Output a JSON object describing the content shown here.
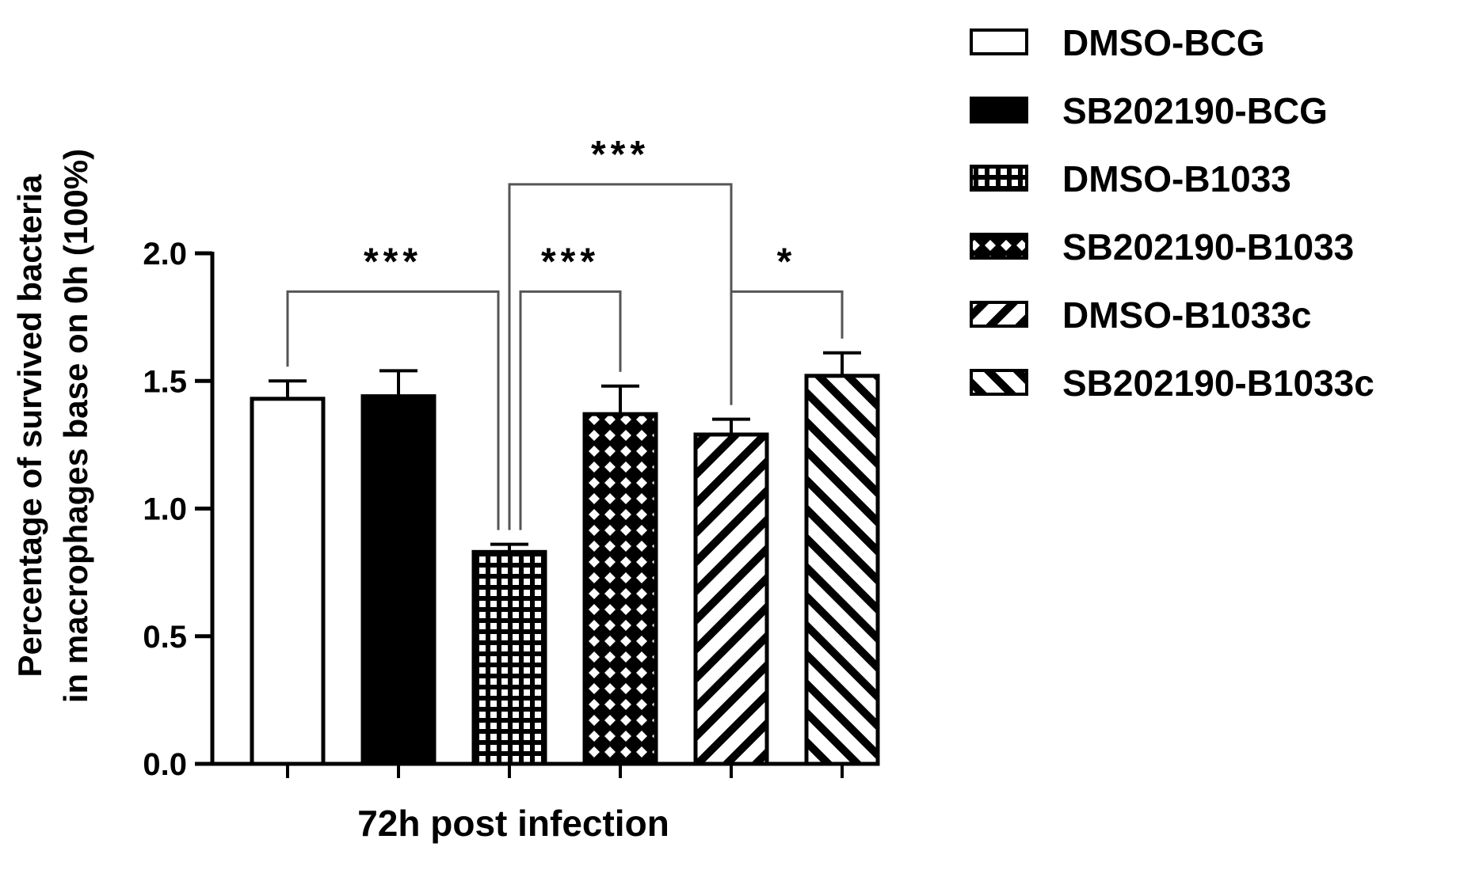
{
  "chart_data": {
    "type": "bar",
    "xlabel": "72h post infection",
    "ylabel_lines": [
      "Percentage of survived bacteria",
      "in macrophages base on 0h (100%)"
    ],
    "ylim": [
      0,
      2.0
    ],
    "yticks": [
      "0.0",
      "0.5",
      "1.0",
      "1.5",
      "2.0"
    ],
    "series": [
      {
        "name": "DMSO-BCG",
        "value": 1.43,
        "error": 0.07,
        "pattern": "solid-white"
      },
      {
        "name": "SB202190-BCG",
        "value": 1.44,
        "error": 0.1,
        "pattern": "solid-black"
      },
      {
        "name": "DMSO-B1033",
        "value": 0.83,
        "error": 0.03,
        "pattern": "grid"
      },
      {
        "name": "SB202190-B1033",
        "value": 1.37,
        "error": 0.11,
        "pattern": "crosshatch"
      },
      {
        "name": "DMSO-B1033c",
        "value": 1.29,
        "error": 0.06,
        "pattern": "diagonal-forward"
      },
      {
        "name": "SB202190-B1033c",
        "value": 1.52,
        "error": 0.09,
        "pattern": "diagonal-backward"
      }
    ],
    "significance": [
      {
        "from": 0,
        "to": 2,
        "label": "***",
        "level": 1.85
      },
      {
        "from": 2,
        "to": 3,
        "label": "***",
        "level": 1.85
      },
      {
        "from": 2,
        "to": 4,
        "label": "***",
        "level": 2.27
      },
      {
        "from": 4,
        "to": 5,
        "label": "*",
        "level": 1.85
      }
    ],
    "legend_position": "right",
    "colors": {
      "stroke": "#000000",
      "fill_light": "#ffffff",
      "fill_dark": "#000000"
    }
  }
}
